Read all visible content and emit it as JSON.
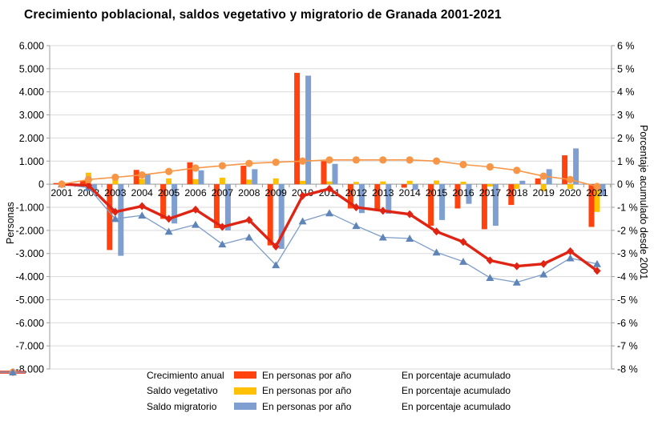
{
  "title": "Crecimiento poblacional, saldos vegetativo y migratorio de Granada 2001-2021",
  "y_axis_left": {
    "title": "Personas",
    "tick_labels": [
      "6.000",
      "5.000",
      "4.000",
      "3.000",
      "2.000",
      "1.000",
      "0",
      "-1.000",
      "-2.000",
      "-3.000",
      "-4.000",
      "-5.000",
      "-6.000",
      "-7.000",
      "-8.000"
    ],
    "max": 6000,
    "min": -8000
  },
  "y_axis_right": {
    "title": "Porcentaje acumulado desde 2001",
    "tick_labels": [
      "6 %",
      "5 %",
      "4 %",
      "3 %",
      "2 %",
      "1 %",
      "0 %",
      "-1 %",
      "-2 %",
      "-3 %",
      "-4 %",
      "-5 %",
      "-6 %",
      "-7 %",
      "-8 %"
    ],
    "max": 6,
    "min": -8
  },
  "chart_data": {
    "type": "bar+line combo",
    "categories": [
      "2001",
      "2002",
      "2003",
      "2004",
      "2005",
      "2006",
      "2007",
      "2008",
      "2009",
      "2010",
      "2011",
      "2012",
      "2013",
      "2014",
      "2015",
      "2016",
      "2017",
      "2018",
      "2019",
      "2020",
      "2021"
    ],
    "grid": "horizontal",
    "legend_position": "bottom",
    "series": [
      {
        "name": "Crecimiento anual - En personas por año",
        "type": "bar",
        "axis": "left",
        "color": "#FF420E",
        "values": [
          50,
          150,
          -2850,
          620,
          -1500,
          950,
          -1900,
          800,
          -2650,
          4820,
          1000,
          -1050,
          -1150,
          -150,
          -1800,
          -1050,
          -1950,
          -900,
          250,
          1250,
          -1850
        ]
      },
      {
        "name": "Saldo vegetativo - En personas por año",
        "type": "bar",
        "axis": "left",
        "color": "#FFC000",
        "values": [
          50,
          500,
          200,
          230,
          250,
          220,
          280,
          200,
          250,
          150,
          120,
          100,
          120,
          150,
          160,
          110,
          -100,
          -200,
          -300,
          -200,
          -1200
        ]
      },
      {
        "name": "Saldo migratorio - En personas por año",
        "type": "bar",
        "axis": "left",
        "color": "#7E9FCF",
        "values": [
          -50,
          -250,
          -3100,
          450,
          -1700,
          600,
          -2000,
          650,
          -2800,
          4700,
          880,
          -1250,
          -1280,
          -250,
          -1550,
          -850,
          -1800,
          150,
          650,
          1550,
          -500
        ]
      },
      {
        "name": "Crecimiento anual - En porcentaje acumulado",
        "type": "line",
        "marker": "diamond",
        "axis": "right",
        "color": "#E02414",
        "width": 3.4,
        "values": [
          0,
          -0.05,
          -1.2,
          -0.95,
          -1.5,
          -1.1,
          -1.85,
          -1.55,
          -2.7,
          -0.5,
          -0.2,
          -1.0,
          -1.15,
          -1.3,
          -2.05,
          -2.5,
          -3.3,
          -3.55,
          -3.45,
          -2.9,
          -3.75
        ]
      },
      {
        "name": "Saldo vegetativo - En porcentaje acumulado",
        "type": "line",
        "marker": "circle",
        "axis": "right",
        "color": "#F79646",
        "width": 1.6,
        "values": [
          0,
          0.2,
          0.3,
          0.4,
          0.55,
          0.7,
          0.8,
          0.9,
          0.95,
          1.0,
          1.05,
          1.05,
          1.05,
          1.05,
          1.0,
          0.85,
          0.75,
          0.6,
          0.35,
          0.2,
          -0.1
        ]
      },
      {
        "name": "Saldo migratorio - En porcentaje acumulado",
        "type": "line",
        "marker": "triangle",
        "axis": "right",
        "color": "#7C9CC8",
        "marker_color": "#5E84B8",
        "width": 1.3,
        "values": [
          0,
          -0.15,
          -1.5,
          -1.35,
          -2.05,
          -1.75,
          -2.6,
          -2.3,
          -3.5,
          -1.6,
          -1.25,
          -1.8,
          -2.3,
          -2.35,
          -2.95,
          -3.35,
          -4.05,
          -4.25,
          -3.9,
          -3.2,
          -3.45
        ]
      }
    ]
  },
  "legend": {
    "rows": [
      {
        "name": "Crecimiento anual",
        "bar_label": "En personas por año",
        "line_label": "En porcentaje acumulado"
      },
      {
        "name": "Saldo vegetativo",
        "bar_label": "En personas por año",
        "line_label": "En porcentaje acumulado"
      },
      {
        "name": "Saldo migratorio",
        "bar_label": "En personas por año",
        "line_label": "En porcentaje acumulado"
      }
    ]
  },
  "colors": {
    "gridline": "#D9D9D9",
    "axis_line": "#9E9E9E",
    "text": "#000000"
  }
}
